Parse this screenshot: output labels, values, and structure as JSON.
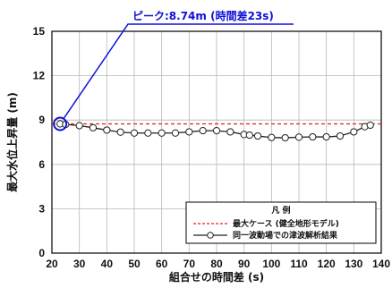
{
  "chart_data": {
    "type": "line",
    "xlabel": "組合せの時間差 (s)",
    "ylabel": "最大水位上昇量 (m)",
    "xlim": [
      20,
      140
    ],
    "ylim": [
      0,
      15
    ],
    "xticks": [
      20,
      30,
      40,
      50,
      60,
      70,
      80,
      90,
      100,
      110,
      120,
      130,
      140
    ],
    "yticks": [
      0,
      3,
      6,
      9,
      12,
      15
    ],
    "grid": true,
    "legend_position": "bottom-right",
    "legend_title": "凡 例",
    "series": [
      {
        "name": "最大ケース (健全地形モデル)",
        "style": "dashed",
        "color": "#e02020",
        "x": [
          20,
          140
        ],
        "y": [
          8.74,
          8.74
        ]
      },
      {
        "name": "同一波動場での津波解析結果",
        "style": "solid-with-markers",
        "color": "#222222",
        "x": [
          23,
          25,
          30,
          35,
          40,
          45,
          50,
          55,
          60,
          65,
          70,
          75,
          80,
          85,
          90,
          92,
          95,
          100,
          105,
          110,
          115,
          120,
          125,
          130,
          134,
          136
        ],
        "y": [
          8.74,
          8.7,
          8.62,
          8.48,
          8.32,
          8.18,
          8.12,
          8.12,
          8.12,
          8.12,
          8.2,
          8.28,
          8.28,
          8.2,
          8.02,
          7.98,
          7.92,
          7.82,
          7.8,
          7.84,
          7.86,
          7.86,
          7.92,
          8.2,
          8.55,
          8.65
        ]
      }
    ],
    "annotation": {
      "text": "ピーク:8.74m (時間差23s)",
      "x": 23,
      "y": 8.74,
      "color": "#1010d8"
    }
  }
}
